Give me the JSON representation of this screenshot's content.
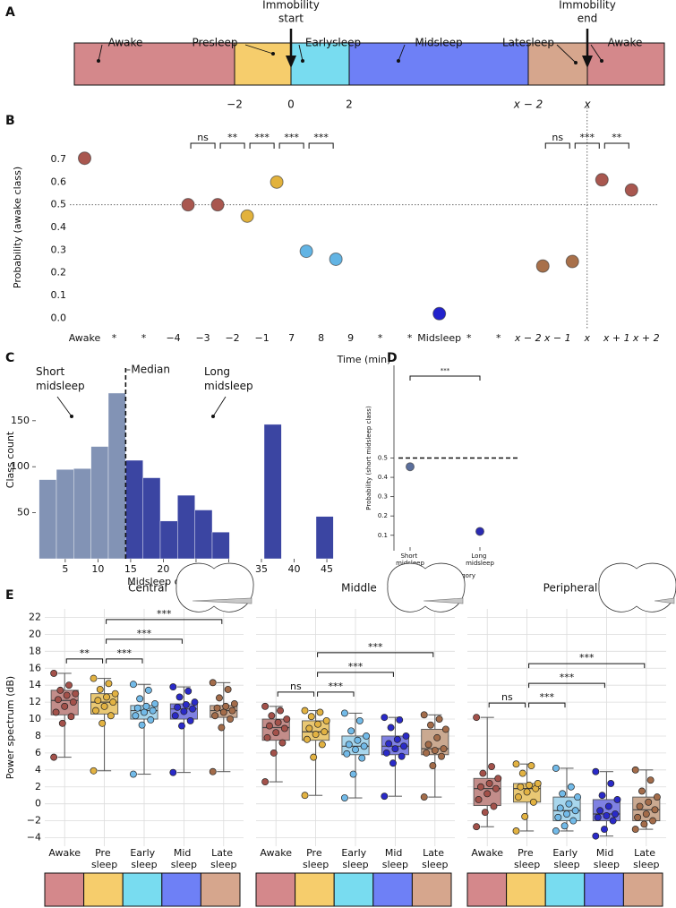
{
  "timeline": {
    "panel": "A",
    "segments": [
      {
        "label": "Awake",
        "color": "#d4888b"
      },
      {
        "label": "Presleep",
        "color": "#f6cd6c"
      },
      {
        "label": "Earlysleep",
        "color": "#78dcf0"
      },
      {
        "label": "Midsleep",
        "color": "#6e80f6"
      },
      {
        "label": "Latesleep",
        "color": "#d6a68d"
      },
      {
        "label": "Awake",
        "color": "#d4888b"
      }
    ],
    "ticks": [
      "−2",
      "0",
      "2",
      "x − 2",
      "x"
    ],
    "arrows": [
      [
        "Immobility",
        "start"
      ],
      [
        "Immobility",
        "end"
      ]
    ]
  },
  "chart_data": [
    {
      "type": "scatter",
      "panel": "B",
      "ylabel": "Probability (awake class)",
      "xlabel": "Time (min)",
      "xlim": [
        -0.5,
        19.4
      ],
      "ylim": [
        -0.05,
        0.85
      ],
      "xticks": [
        {
          "value": 0,
          "label": "Awake"
        },
        {
          "value": 1,
          "label": "*"
        },
        {
          "value": 2,
          "label": "*"
        },
        {
          "value": 3,
          "label": "−4"
        },
        {
          "value": 4,
          "label": "−3"
        },
        {
          "value": 5,
          "label": "−2"
        },
        {
          "value": 6,
          "label": "−1"
        },
        7,
        8,
        9,
        {
          "value": 10,
          "label": "*"
        },
        {
          "value": 11,
          "label": "*"
        },
        {
          "value": 12,
          "label": "Midsleep"
        },
        {
          "value": 13,
          "label": "*"
        },
        {
          "value": 14,
          "label": "*"
        },
        {
          "value": 15,
          "label": "x − 2"
        },
        {
          "value": 16,
          "label": "x − 1"
        },
        {
          "value": 17,
          "label": "x"
        },
        {
          "value": 18,
          "label": "x + 1"
        },
        {
          "value": 19,
          "label": "x + 2"
        }
      ],
      "yticks": [
        {
          "value": 0,
          "label": "0.0"
        },
        0.1,
        0.2,
        0.3,
        0.4,
        0.5,
        0.6,
        0.7
      ],
      "x": [
        0,
        3.5,
        4.5,
        5.5,
        6.5,
        7.5,
        8.5,
        12,
        15.5,
        16.5,
        17.5,
        18.5
      ],
      "values": [
        0.705,
        0.5,
        0.5,
        0.45,
        0.6,
        0.295,
        0.26,
        0.02,
        0.23,
        0.25,
        0.61,
        0.565
      ],
      "colors": [
        "#a9574f",
        "#a9574f",
        "#a9574f",
        "#e2b23c",
        "#e2b23c",
        "#62b4e4",
        "#62b4e4",
        "#2222cc",
        "#a8704a",
        "#a8704a",
        "#a9574f",
        "#a9574f"
      ],
      "hlines": [
        0.5
      ],
      "vlines": [
        17
      ],
      "brackets": [
        {
          "pair": [
            1,
            2
          ],
          "label": "ns"
        },
        {
          "pair": [
            2,
            3
          ],
          "label": "**"
        },
        {
          "pair": [
            3,
            4
          ],
          "label": "***"
        },
        {
          "pair": [
            4,
            5
          ],
          "label": "***"
        },
        {
          "pair": [
            5,
            6
          ],
          "label": "***"
        },
        {
          "pair": [
            8,
            9
          ],
          "label": "ns"
        },
        {
          "pair": [
            9,
            10
          ],
          "label": "***"
        },
        {
          "pair": [
            10,
            11
          ],
          "label": "**"
        }
      ]
    },
    {
      "type": "histogram",
      "panel": "C",
      "ylabel": "Class count",
      "xlabel": "Midsleep duration (min)",
      "xlim": [
        0.5,
        46.5
      ],
      "ylim": [
        0,
        215
      ],
      "xticks": [
        5,
        10,
        15,
        20,
        25,
        30,
        35,
        40,
        45
      ],
      "yticks": [
        50,
        100,
        150
      ],
      "bins": [
        1,
        3.65,
        6.29,
        8.94,
        11.59,
        14.24,
        16.88,
        19.53,
        22.18,
        24.82,
        27.47,
        30.12,
        32.76,
        35.41,
        38.06,
        40.71,
        43.35,
        46
      ],
      "counts": [
        86,
        97,
        98,
        122,
        180,
        107,
        88,
        41,
        69,
        53,
        29,
        0,
        0,
        146,
        0,
        0,
        46
      ],
      "colors": [
        "#8293b5",
        "#8293b5",
        "#8293b5",
        "#8293b5",
        "#8293b5",
        "#3b45a2",
        "#3b45a2",
        "#3b45a2",
        "#3b45a2",
        "#3b45a2",
        "#3b45a2",
        "#3b45a2",
        "#3b45a2",
        "#3b45a2",
        "#3b45a2",
        "#3b45a2",
        "#3b45a2"
      ],
      "median": 14.24,
      "median_label": "Median",
      "annotations": [
        "Short midsleep",
        "Long midsleep"
      ]
    },
    {
      "type": "scatter",
      "panel": "D",
      "ylabel": "Probability (short midsleep class)",
      "xlabel": "Category",
      "categories": [
        "Short midsleep",
        "Long midsleep"
      ],
      "values": [
        0.455,
        0.12
      ],
      "colors": [
        "#5b6f9c",
        "#2a2ab2"
      ],
      "ylim": [
        0.02,
        0.98
      ],
      "yticks": [
        0.1,
        0.2,
        0.3,
        0.4,
        0.5
      ],
      "hlines": [
        0.5
      ],
      "brackets": [
        {
          "pair": [
            0,
            1
          ],
          "label": "***"
        }
      ]
    },
    {
      "type": "box",
      "panel": "E",
      "title": "Central",
      "ylabel": "Power spectrum (dB)",
      "grid": true,
      "ylim": [
        -5,
        23
      ],
      "yticks": [
        {
          "value": -4,
          "label": "−4"
        },
        {
          "value": -2,
          "label": "−2"
        },
        0,
        2,
        4,
        6,
        8,
        10,
        12,
        14,
        16,
        18,
        20,
        22
      ],
      "categories": [
        "Awake",
        "Pre sleep",
        "Early sleep",
        "Mid sleep",
        "Late sleep"
      ],
      "colors": [
        "#c38d8a",
        "#e9c874",
        "#a8d6ec",
        "#7f81e2",
        "#caa991"
      ],
      "point_colors": [
        "#a3514a",
        "#e2b242",
        "#72bae8",
        "#2a2ac8",
        "#a36c4a"
      ],
      "strip_colors": [
        "#d4888b",
        "#f6cd6c",
        "#78dcf0",
        "#6e80f6",
        "#d6a68d"
      ],
      "boxes": [
        {
          "low": 5.5,
          "q1": 10.5,
          "median": 12.2,
          "q3": 13.4,
          "high": 15.4,
          "points": [
            5.5,
            9.5,
            10.3,
            10.8,
            11.5,
            12.0,
            12.3,
            12.8,
            13.0,
            13.4,
            14.0,
            15.4
          ]
        },
        {
          "low": 3.9,
          "q1": 10.6,
          "median": 12.0,
          "q3": 13.0,
          "high": 14.8,
          "points": [
            3.9,
            9.5,
            10.4,
            11.0,
            11.5,
            12.0,
            12.2,
            12.6,
            13.0,
            13.5,
            14.2,
            14.8
          ]
        },
        {
          "low": 3.5,
          "q1": 10.0,
          "median": 11.0,
          "q3": 11.6,
          "high": 14.1,
          "points": [
            3.5,
            9.3,
            9.9,
            10.4,
            10.8,
            11.0,
            11.3,
            11.5,
            11.8,
            12.4,
            13.4,
            14.1
          ]
        },
        {
          "low": 3.7,
          "q1": 10.0,
          "median": 11.2,
          "q3": 11.8,
          "high": 13.8,
          "points": [
            3.7,
            9.2,
            9.8,
            10.4,
            10.9,
            11.2,
            11.4,
            11.7,
            12.0,
            12.6,
            13.3,
            13.8
          ]
        },
        {
          "low": 3.8,
          "q1": 10.2,
          "median": 11.0,
          "q3": 11.6,
          "high": 14.3,
          "points": [
            3.8,
            9.0,
            10.0,
            10.4,
            10.8,
            11.0,
            11.3,
            11.5,
            11.8,
            12.5,
            13.5,
            14.3
          ]
        }
      ],
      "brackets": [
        {
          "pair": [
            0,
            1
          ],
          "label": "**"
        },
        {
          "pair": [
            1,
            2
          ],
          "label": "***"
        },
        {
          "pair": [
            1,
            3
          ],
          "label": "***"
        },
        {
          "pair": [
            1,
            4
          ],
          "label": "***"
        }
      ]
    },
    {
      "type": "box",
      "title": "Middle",
      "grid": true,
      "sharey": true,
      "categories": [
        "Awake",
        "Pre sleep",
        "Early sleep",
        "Mid sleep",
        "Late sleep"
      ],
      "colors": [
        "#c38d8a",
        "#e9c874",
        "#a8d6ec",
        "#7f81e2",
        "#caa991"
      ],
      "point_colors": [
        "#a3514a",
        "#e2b242",
        "#72bae8",
        "#2a2ac8",
        "#a36c4a"
      ],
      "strip_colors": [
        "#d4888b",
        "#f6cd6c",
        "#78dcf0",
        "#6e80f6",
        "#d6a68d"
      ],
      "boxes": [
        {
          "low": 2.6,
          "q1": 7.5,
          "median": 9.0,
          "q3": 10.0,
          "high": 11.5,
          "points": [
            2.6,
            6.0,
            7.2,
            7.8,
            8.4,
            8.9,
            9.2,
            9.6,
            10.0,
            10.4,
            11.0,
            11.5
          ]
        },
        {
          "low": 1.0,
          "q1": 7.5,
          "median": 8.5,
          "q3": 9.8,
          "high": 11.0,
          "points": [
            1.0,
            5.5,
            7.0,
            7.6,
            8.2,
            8.5,
            8.9,
            9.4,
            9.8,
            10.3,
            10.8,
            11.0
          ]
        },
        {
          "low": 0.7,
          "q1": 5.8,
          "median": 6.8,
          "q3": 8.0,
          "high": 10.7,
          "points": [
            0.7,
            3.5,
            5.4,
            5.9,
            6.4,
            6.8,
            7.0,
            7.5,
            8.0,
            8.6,
            9.8,
            10.7
          ]
        },
        {
          "low": 0.9,
          "q1": 5.8,
          "median": 6.8,
          "q3": 8.0,
          "high": 10.2,
          "points": [
            0.9,
            4.8,
            5.6,
            6.0,
            6.5,
            6.8,
            7.1,
            7.6,
            8.0,
            9.0,
            9.9,
            10.2
          ]
        },
        {
          "low": 0.8,
          "q1": 5.8,
          "median": 6.5,
          "q3": 8.8,
          "high": 10.5,
          "points": [
            0.8,
            4.5,
            5.6,
            6.0,
            6.3,
            6.5,
            7.0,
            7.8,
            8.8,
            9.3,
            10.0,
            10.5
          ]
        }
      ],
      "brackets": [
        {
          "pair": [
            0,
            1
          ],
          "label": "ns"
        },
        {
          "pair": [
            1,
            2
          ],
          "label": "***"
        },
        {
          "pair": [
            1,
            3
          ],
          "label": "***"
        },
        {
          "pair": [
            1,
            4
          ],
          "label": "***"
        }
      ]
    },
    {
      "type": "box",
      "title": "Peripheral",
      "grid": true,
      "sharey": true,
      "categories": [
        "Awake",
        "Pre sleep",
        "Early sleep",
        "Mid sleep",
        "Late sleep"
      ],
      "colors": [
        "#c38d8a",
        "#e9c874",
        "#a8d6ec",
        "#7f81e2",
        "#caa991"
      ],
      "point_colors": [
        "#a3514a",
        "#e2b242",
        "#72bae8",
        "#2a2ac8",
        "#a36c4a"
      ],
      "strip_colors": [
        "#d4888b",
        "#f6cd6c",
        "#78dcf0",
        "#6e80f6",
        "#d6a68d"
      ],
      "boxes": [
        {
          "low": -2.7,
          "q1": -0.2,
          "median": 1.8,
          "q3": 3.0,
          "high": 10.2,
          "points": [
            -2.7,
            -1.0,
            -0.3,
            0.5,
            1.2,
            1.8,
            2.0,
            2.4,
            3.0,
            3.6,
            4.4,
            10.2
          ]
        },
        {
          "low": -3.2,
          "q1": 0.2,
          "median": 1.8,
          "q3": 2.4,
          "high": 4.7,
          "points": [
            -3.2,
            -1.5,
            0.2,
            0.8,
            1.4,
            1.8,
            2.0,
            2.2,
            2.4,
            3.6,
            4.5,
            4.7
          ]
        },
        {
          "low": -3.2,
          "q1": -2.0,
          "median": -0.8,
          "q3": 0.8,
          "high": 4.2,
          "points": [
            -3.2,
            -2.6,
            -2.0,
            -1.6,
            -1.2,
            -0.8,
            -0.5,
            0.0,
            0.8,
            1.2,
            2.0,
            4.2
          ]
        },
        {
          "low": -3.8,
          "q1": -2.0,
          "median": -1.2,
          "q3": 0.5,
          "high": 3.8,
          "points": [
            -3.8,
            -3.0,
            -2.0,
            -1.6,
            -1.4,
            -1.2,
            -0.8,
            -0.3,
            0.5,
            1.0,
            2.4,
            3.8
          ]
        },
        {
          "low": -3.0,
          "q1": -2.0,
          "median": -0.7,
          "q3": 0.8,
          "high": 4.0,
          "points": [
            -3.0,
            -2.4,
            -2.0,
            -1.6,
            -1.2,
            -0.7,
            -0.3,
            0.2,
            0.8,
            1.5,
            2.8,
            4.0
          ]
        }
      ],
      "brackets": [
        {
          "pair": [
            0,
            1
          ],
          "label": "ns"
        },
        {
          "pair": [
            1,
            2
          ],
          "label": "***"
        },
        {
          "pair": [
            1,
            3
          ],
          "label": "***"
        },
        {
          "pair": [
            1,
            4
          ],
          "label": "***"
        }
      ]
    }
  ]
}
